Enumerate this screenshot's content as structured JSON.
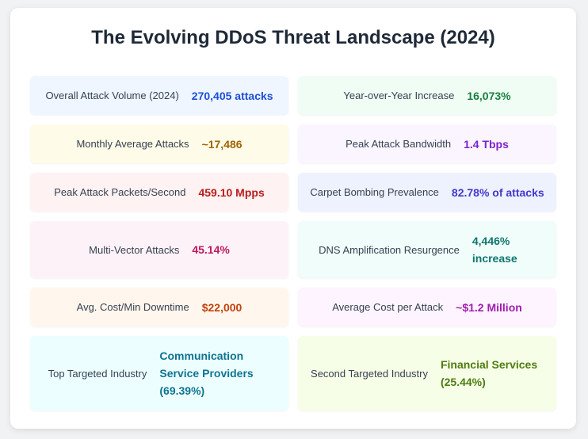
{
  "title": "The Evolving DDoS Threat Landscape (2024)",
  "stats": [
    {
      "label": "Overall Attack Volume (2024)",
      "value": "270,405 attacks",
      "bg": "#eff6ff",
      "color": "#1d4ed8"
    },
    {
      "label": "Year-over-Year Increase",
      "value": "16,073%",
      "bg": "#f0fdf4",
      "color": "#15803d"
    },
    {
      "label": "Monthly Average Attacks",
      "value": "~17,486",
      "bg": "#fefce8",
      "color": "#a16207"
    },
    {
      "label": "Peak Attack Bandwidth",
      "value": "1.4 Tbps",
      "bg": "#faf5ff",
      "color": "#7e22ce"
    },
    {
      "label": "Peak Attack Packets/Second",
      "value": "459.10 Mpps",
      "bg": "#fef2f2",
      "color": "#b91c1c"
    },
    {
      "label": "Carpet Bombing Prevalence",
      "value": "82.78% of attacks",
      "bg": "#eef2ff",
      "color": "#4338ca"
    },
    {
      "label": "Multi-Vector Attacks",
      "value": "45.14%",
      "bg": "#fdf2f8",
      "color": "#be185d"
    },
    {
      "label": "DNS Amplification Resurgence",
      "value": "4,446% increase",
      "bg": "#f0fdfa",
      "color": "#0f766e"
    },
    {
      "label": "Avg. Cost/Min Downtime",
      "value": "$22,000",
      "bg": "#fff7ed",
      "color": "#c2410c"
    },
    {
      "label": "Average Cost per Attack",
      "value": "~$1.2 Million",
      "bg": "#fdf4ff",
      "color": "#a21caf"
    },
    {
      "label": "Top Targeted Industry",
      "value": "Communication Service Providers (69.39%)",
      "bg": "#ecfeff",
      "color": "#0e7490"
    },
    {
      "label": "Second Targeted Industry",
      "value": "Financial Services (25.44%)",
      "bg": "#f7fee7",
      "color": "#4d7c0f"
    }
  ]
}
